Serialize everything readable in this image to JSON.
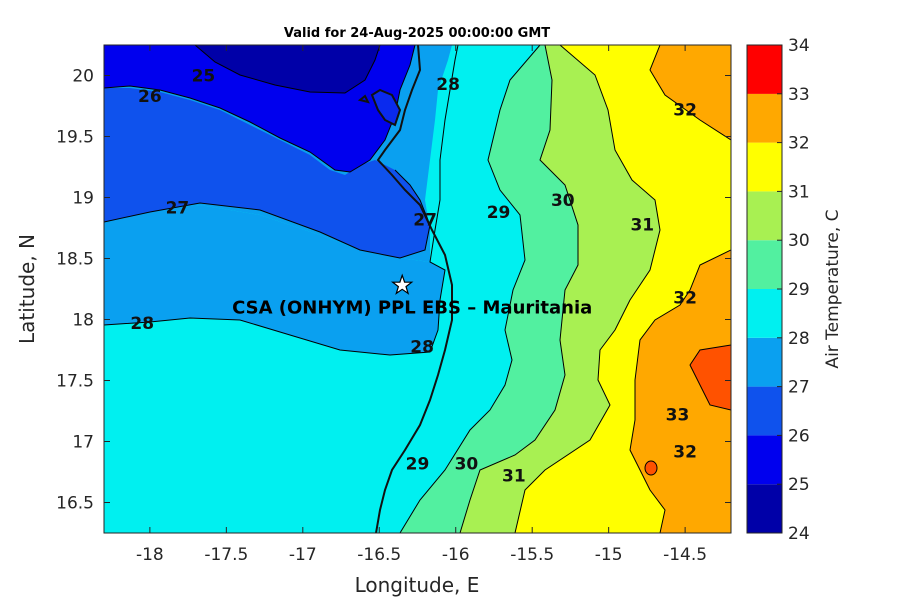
{
  "title": "Valid for 24-Aug-2025 00:00:00 GMT",
  "map": {
    "xlabel": "Longitude, E",
    "ylabel": "Latitude, N",
    "xlim": [
      -18.3,
      -14.2
    ],
    "ylim": [
      16.25,
      20.25
    ],
    "xticks": [
      "-18",
      "-17.5",
      "-17",
      "-16.5",
      "-16",
      "-15.5",
      "-15",
      "-14.5"
    ],
    "xtick_values": [
      -18,
      -17.5,
      -17,
      -16.5,
      -16,
      -15.5,
      -15,
      -14.5
    ],
    "yticks": [
      "16.5",
      "17",
      "17.5",
      "18",
      "18.5",
      "19",
      "19.5",
      "20"
    ],
    "ytick_values": [
      16.5,
      17,
      17.5,
      18,
      18.5,
      19,
      19.5,
      20
    ],
    "site": {
      "label": "CSA (ONHYM) PPL EBS  – Mauritania",
      "lon": -16.35,
      "lat": 18.28,
      "marker": "star-icon"
    },
    "contour_labels": [
      {
        "text": "25",
        "lon": -17.65,
        "lat": 20.0
      },
      {
        "text": "26",
        "lon": -18.0,
        "lat": 19.83
      },
      {
        "text": "27",
        "lon": -17.82,
        "lat": 18.92
      },
      {
        "text": "27",
        "lon": -16.2,
        "lat": 18.82
      },
      {
        "text": "28",
        "lon": -18.05,
        "lat": 17.97
      },
      {
        "text": "28",
        "lon": -16.22,
        "lat": 17.78
      },
      {
        "text": "28",
        "lon": -16.05,
        "lat": 19.93
      },
      {
        "text": "29",
        "lon": -15.72,
        "lat": 18.88
      },
      {
        "text": "29",
        "lon": -16.25,
        "lat": 16.82
      },
      {
        "text": "30",
        "lon": -15.3,
        "lat": 18.98
      },
      {
        "text": "30",
        "lon": -15.93,
        "lat": 16.82
      },
      {
        "text": "31",
        "lon": -14.78,
        "lat": 18.78
      },
      {
        "text": "31",
        "lon": -15.62,
        "lat": 16.72
      },
      {
        "text": "32",
        "lon": -14.5,
        "lat": 19.72
      },
      {
        "text": "32",
        "lon": -14.5,
        "lat": 18.18
      },
      {
        "text": "32",
        "lon": -14.5,
        "lat": 16.92
      },
      {
        "text": "33",
        "lon": -14.55,
        "lat": 17.22
      }
    ]
  },
  "colorbar": {
    "label": "Air Temperature, C",
    "levels": [
      24,
      25,
      26,
      27,
      28,
      29,
      30,
      31,
      32,
      33,
      34
    ],
    "ticks": [
      "24",
      "25",
      "26",
      "27",
      "28",
      "29",
      "30",
      "31",
      "32",
      "33",
      "34"
    ],
    "colors": [
      "#0000a8",
      "#0000ee",
      "#0f52ed",
      "#0aa0f0",
      "#00f0f0",
      "#52f0a0",
      "#a8f052",
      "#ffff00",
      "#ffa800",
      "#ff5200",
      "#ff0000"
    ]
  }
}
